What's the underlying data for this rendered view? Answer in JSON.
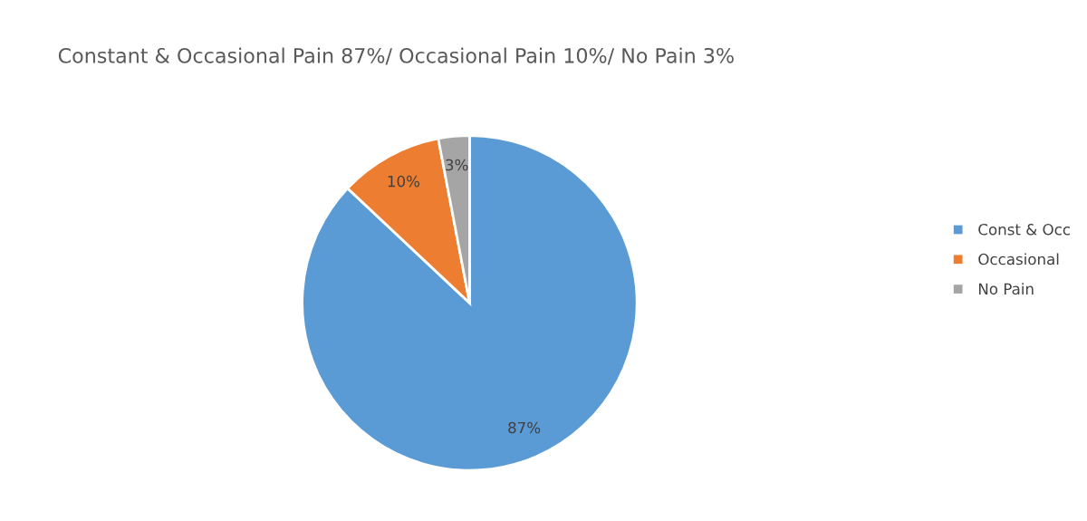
{
  "chart_data": {
    "type": "pie",
    "title": "Constant & Occasional Pain 87%/ Occasional Pain 10%/ No Pain 3%",
    "categories": [
      "Const & Occ",
      "Occasional",
      "No Pain"
    ],
    "values": [
      87,
      10,
      3
    ],
    "colors": [
      "#5b9bd5",
      "#ed7d31",
      "#a5a5a5"
    ],
    "value_labels": [
      "87%",
      "10%",
      "3%"
    ],
    "legend": "right"
  }
}
